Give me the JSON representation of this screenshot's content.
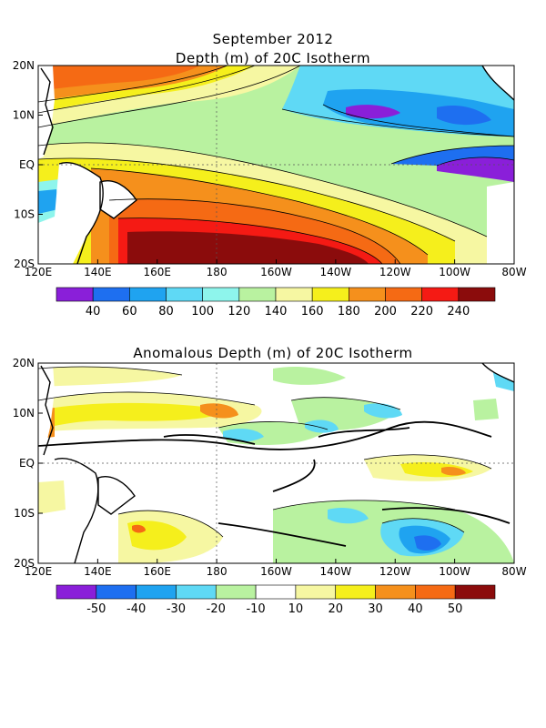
{
  "top_map": {
    "title_line1": "September 2012",
    "title_line2": "Depth (m) of 20C Isotherm",
    "lat_labels": [
      "20N",
      "10N",
      "EQ",
      "10S",
      "20S"
    ],
    "lon_labels": [
      "120E",
      "140E",
      "160E",
      "180",
      "160W",
      "140W",
      "120W",
      "100W",
      "80W"
    ],
    "colorbar": {
      "colors": [
        "#8a1fd9",
        "#1e6ff0",
        "#1fa3f0",
        "#5fd9f5",
        "#8ef5ec",
        "#b9f2a0",
        "#f6f7a2",
        "#f5ef1c",
        "#f5901c",
        "#f56a14",
        "#f51a14",
        "#8b0c0c"
      ],
      "labels": [
        "40",
        "60",
        "80",
        "100",
        "120",
        "140",
        "160",
        "180",
        "200",
        "220",
        "240"
      ]
    }
  },
  "bottom_map": {
    "title": "Anomalous Depth (m) of 20C Isotherm",
    "lat_labels": [
      "20N",
      "10N",
      "EQ",
      "10S",
      "20S"
    ],
    "lon_labels": [
      "120E",
      "140E",
      "160E",
      "180",
      "160W",
      "140W",
      "120W",
      "100W",
      "80W"
    ],
    "colorbar": {
      "colors": [
        "#8a1fd9",
        "#1e6ff0",
        "#1fa3f0",
        "#5fd9f5",
        "#b9f2a0",
        "#ffffff",
        "#f6f7a2",
        "#f5ef1c",
        "#f5901c",
        "#f56a14",
        "#8b0c0c"
      ],
      "labels": [
        "-50",
        "-40",
        "-30",
        "-20",
        "-10",
        "10",
        "20",
        "30",
        "40",
        "50"
      ]
    }
  }
}
